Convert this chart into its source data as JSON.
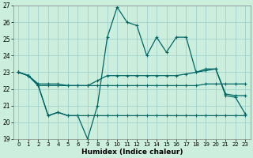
{
  "xlabel": "Humidex (Indice chaleur)",
  "xlim": [
    -0.5,
    23.5
  ],
  "ylim": [
    19,
    27
  ],
  "yticks": [
    19,
    20,
    21,
    22,
    23,
    24,
    25,
    26,
    27
  ],
  "xticks": [
    0,
    1,
    2,
    3,
    4,
    5,
    6,
    7,
    8,
    9,
    10,
    11,
    12,
    13,
    14,
    15,
    16,
    17,
    18,
    19,
    20,
    21,
    22,
    23
  ],
  "bg_color": "#cceedd",
  "line_color": "#006666",
  "grid_color": "#99cccc",
  "line1_y": [
    23.0,
    22.8,
    22.2,
    20.4,
    20.6,
    20.4,
    20.4,
    19.0,
    21.0,
    25.1,
    26.9,
    26.0,
    25.8,
    24.0,
    25.1,
    24.2,
    25.1,
    25.1,
    23.0,
    23.2,
    23.2,
    21.6,
    21.5,
    20.5
  ],
  "line2_y": [
    23.0,
    22.8,
    22.2,
    22.2,
    22.2,
    22.2,
    22.2,
    22.2,
    22.5,
    22.8,
    22.8,
    22.8,
    22.8,
    22.8,
    22.8,
    22.8,
    22.8,
    22.9,
    23.0,
    23.1,
    23.2,
    21.7,
    21.6,
    21.6
  ],
  "line3_y": [
    23.0,
    22.8,
    22.3,
    22.3,
    22.3,
    22.2,
    22.2,
    22.2,
    22.2,
    22.2,
    22.2,
    22.2,
    22.2,
    22.2,
    22.2,
    22.2,
    22.2,
    22.2,
    22.2,
    22.3,
    22.3,
    22.3,
    22.3,
    22.3
  ],
  "line4_y": [
    23.0,
    22.8,
    22.2,
    20.4,
    20.6,
    20.4,
    20.4,
    20.4,
    20.4,
    20.4,
    20.4,
    20.4,
    20.4,
    20.4,
    20.4,
    20.4,
    20.4,
    20.4,
    20.4,
    20.4,
    20.4,
    20.4,
    20.4,
    20.4
  ]
}
